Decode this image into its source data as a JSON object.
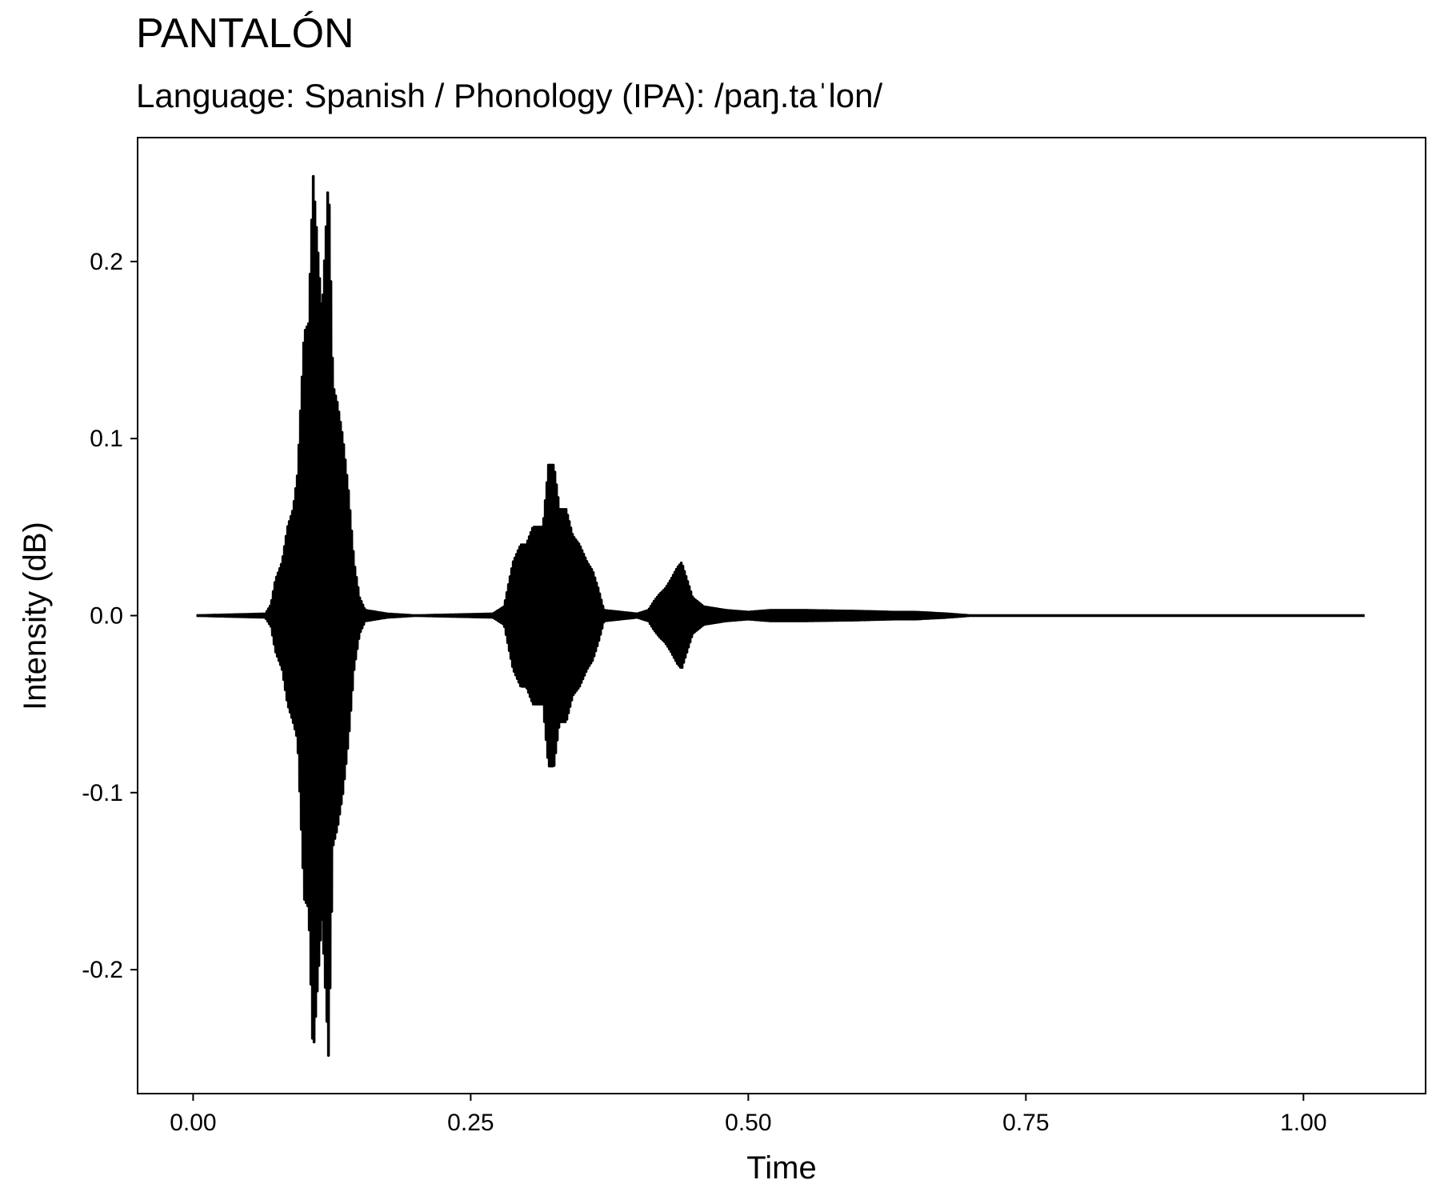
{
  "chart_data": {
    "type": "line",
    "title": "PANTALÓN",
    "subtitle": "Language: Spanish / Phonology (IPA): /paŋ.taˈlon/",
    "xlabel": "Time",
    "ylabel": "Intensity (dB)",
    "xlim": [
      -0.05,
      1.11
    ],
    "ylim": [
      -0.27,
      0.27
    ],
    "x_ticks": [
      0,
      0.25,
      0.5,
      0.75,
      1
    ],
    "x_tick_labels": [
      "0.00",
      "0.25",
      "0.50",
      "0.75",
      "1.00"
    ],
    "y_ticks": [
      -0.2,
      -0.1,
      0,
      0.1,
      0.2
    ],
    "y_tick_labels": [
      "-0.2",
      "-0.1",
      "0.0",
      "0.1",
      "0.2"
    ],
    "grid": false,
    "series": [
      {
        "color": "#000000",
        "x_range": [
          0.003,
          1.055
        ],
        "envelope": [
          {
            "x": 0.003,
            "lo": 0,
            "hi": 0
          },
          {
            "x": 0.065,
            "lo": -0.001,
            "hi": 0.001
          },
          {
            "x": 0.07,
            "lo": -0.006,
            "hi": 0.006
          },
          {
            "x": 0.074,
            "lo": -0.02,
            "hi": 0.02
          },
          {
            "x": 0.08,
            "lo": -0.03,
            "hi": 0.03
          },
          {
            "x": 0.085,
            "lo": -0.05,
            "hi": 0.05
          },
          {
            "x": 0.09,
            "lo": -0.06,
            "hi": 0.06
          },
          {
            "x": 0.094,
            "lo": -0.07,
            "hi": 0.08
          },
          {
            "x": 0.1,
            "lo": -0.16,
            "hi": 0.16
          },
          {
            "x": 0.104,
            "lo": -0.165,
            "hi": 0.165
          },
          {
            "x": 0.108,
            "lo": -0.25,
            "hi": 0.25
          },
          {
            "x": 0.112,
            "lo": -0.21,
            "hi": 0.21
          },
          {
            "x": 0.116,
            "lo": -0.17,
            "hi": 0.17
          },
          {
            "x": 0.122,
            "lo": -0.25,
            "hi": 0.25
          },
          {
            "x": 0.126,
            "lo": -0.13,
            "hi": 0.13
          },
          {
            "x": 0.13,
            "lo": -0.12,
            "hi": 0.12
          },
          {
            "x": 0.135,
            "lo": -0.1,
            "hi": 0.1
          },
          {
            "x": 0.14,
            "lo": -0.07,
            "hi": 0.07
          },
          {
            "x": 0.145,
            "lo": -0.03,
            "hi": 0.03
          },
          {
            "x": 0.15,
            "lo": -0.01,
            "hi": 0.01
          },
          {
            "x": 0.155,
            "lo": -0.003,
            "hi": 0.003
          },
          {
            "x": 0.175,
            "lo": -0.001,
            "hi": 0.001
          },
          {
            "x": 0.2,
            "lo": 0,
            "hi": 0
          },
          {
            "x": 0.27,
            "lo": -0.001,
            "hi": 0.001
          },
          {
            "x": 0.28,
            "lo": -0.005,
            "hi": 0.005
          },
          {
            "x": 0.288,
            "lo": -0.03,
            "hi": 0.03
          },
          {
            "x": 0.295,
            "lo": -0.04,
            "hi": 0.04
          },
          {
            "x": 0.3,
            "lo": -0.04,
            "hi": 0.04
          },
          {
            "x": 0.306,
            "lo": -0.05,
            "hi": 0.05
          },
          {
            "x": 0.31,
            "lo": -0.05,
            "hi": 0.05
          },
          {
            "x": 0.315,
            "lo": -0.05,
            "hi": 0.05
          },
          {
            "x": 0.32,
            "lo": -0.085,
            "hi": 0.085
          },
          {
            "x": 0.325,
            "lo": -0.085,
            "hi": 0.085
          },
          {
            "x": 0.33,
            "lo": -0.06,
            "hi": 0.06
          },
          {
            "x": 0.336,
            "lo": -0.06,
            "hi": 0.06
          },
          {
            "x": 0.342,
            "lo": -0.045,
            "hi": 0.045
          },
          {
            "x": 0.348,
            "lo": -0.04,
            "hi": 0.04
          },
          {
            "x": 0.355,
            "lo": -0.03,
            "hi": 0.03
          },
          {
            "x": 0.36,
            "lo": -0.025,
            "hi": 0.025
          },
          {
            "x": 0.365,
            "lo": -0.015,
            "hi": 0.015
          },
          {
            "x": 0.37,
            "lo": -0.003,
            "hi": 0.003
          },
          {
            "x": 0.4,
            "lo": -0.001,
            "hi": 0.001
          },
          {
            "x": 0.41,
            "lo": -0.003,
            "hi": 0.003
          },
          {
            "x": 0.415,
            "lo": -0.008,
            "hi": 0.008
          },
          {
            "x": 0.42,
            "lo": -0.012,
            "hi": 0.012
          },
          {
            "x": 0.425,
            "lo": -0.015,
            "hi": 0.015
          },
          {
            "x": 0.43,
            "lo": -0.02,
            "hi": 0.02
          },
          {
            "x": 0.436,
            "lo": -0.027,
            "hi": 0.027
          },
          {
            "x": 0.44,
            "lo": -0.03,
            "hi": 0.03
          },
          {
            "x": 0.445,
            "lo": -0.02,
            "hi": 0.02
          },
          {
            "x": 0.45,
            "lo": -0.01,
            "hi": 0.01
          },
          {
            "x": 0.46,
            "lo": -0.005,
            "hi": 0.005
          },
          {
            "x": 0.48,
            "lo": -0.003,
            "hi": 0.003
          },
          {
            "x": 0.5,
            "lo": -0.002,
            "hi": 0.002
          },
          {
            "x": 0.52,
            "lo": -0.003,
            "hi": 0.003
          },
          {
            "x": 0.55,
            "lo": -0.003,
            "hi": 0.003
          },
          {
            "x": 0.6,
            "lo": -0.0025,
            "hi": 0.0025
          },
          {
            "x": 0.63,
            "lo": -0.002,
            "hi": 0.002
          },
          {
            "x": 0.65,
            "lo": -0.002,
            "hi": 0.002
          },
          {
            "x": 0.68,
            "lo": -0.001,
            "hi": 0.001
          },
          {
            "x": 0.7,
            "lo": 0,
            "hi": 0
          },
          {
            "x": 1.055,
            "lo": 0,
            "hi": 0
          }
        ]
      }
    ]
  }
}
